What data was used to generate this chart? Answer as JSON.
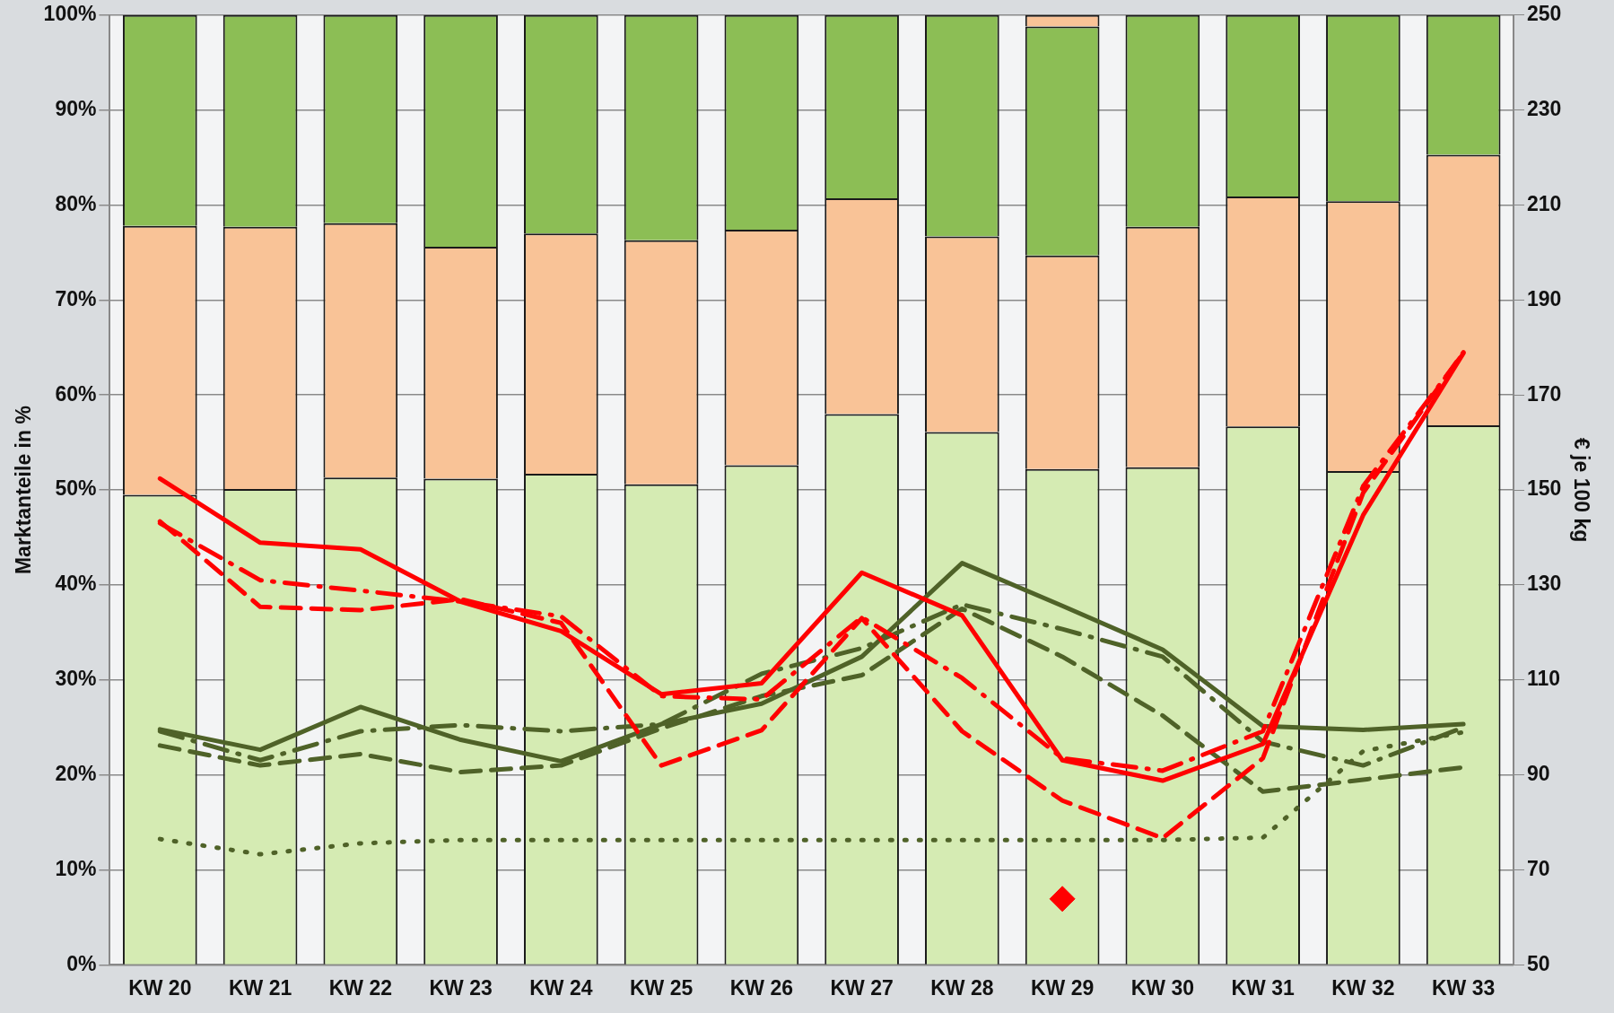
{
  "chart_data": {
    "type": "bar",
    "stacked": true,
    "grid": "y",
    "legend": false,
    "ylabel": "Marktanteile in %",
    "y2label": "€ je 100 kg",
    "categories": [
      "KW 20",
      "KW 21",
      "KW 22",
      "KW 23",
      "KW 24",
      "KW 25",
      "KW 26",
      "KW 27",
      "KW 28",
      "KW 29",
      "KW 30",
      "KW 31",
      "KW 32",
      "KW 33"
    ],
    "ylim": [
      0,
      100
    ],
    "yticks": [
      {
        "value": 0,
        "label": "0%"
      },
      {
        "value": 10,
        "label": "10%"
      },
      {
        "value": 20,
        "label": "20%"
      },
      {
        "value": 30,
        "label": "30%"
      },
      {
        "value": 40,
        "label": "40%"
      },
      {
        "value": 50,
        "label": "50%"
      },
      {
        "value": 60,
        "label": "60%"
      },
      {
        "value": 70,
        "label": "70%"
      },
      {
        "value": 80,
        "label": "80%"
      },
      {
        "value": 90,
        "label": "90%"
      },
      {
        "value": 100,
        "label": "100%"
      }
    ],
    "y2lim": [
      50,
      250
    ],
    "y2ticks": [
      50,
      70,
      90,
      110,
      130,
      150,
      170,
      190,
      210,
      230,
      250
    ],
    "series": [
      {
        "color": "#d5ebb3",
        "values": [
          49.5,
          50.1,
          51.3,
          51.2,
          51.7,
          50.6,
          52.6,
          58.0,
          56.1,
          52.2,
          52.4,
          56.7,
          52.0,
          56.8
        ]
      },
      {
        "color": "#f9c397",
        "values": [
          28.3,
          27.6,
          26.8,
          24.4,
          25.3,
          25.7,
          24.8,
          22.7,
          20.6,
          22.5,
          25.3,
          24.2,
          28.4,
          28.5
        ]
      },
      {
        "color": "#8cbe55",
        "values": [
          22.2,
          22.3,
          21.9,
          24.4,
          23.0,
          23.7,
          22.6,
          19.3,
          23.3,
          24.1,
          22.3,
          19.1,
          19.6,
          14.7
        ]
      },
      {
        "color": "#f9c397",
        "values": [
          null,
          null,
          null,
          null,
          null,
          null,
          null,
          null,
          null,
          1.2,
          null,
          null,
          null,
          null
        ]
      },
      {
        "type": "line",
        "axis": "y2",
        "line_style": "solid",
        "color": "#ff0000",
        "values": [
          152.4,
          138.9,
          137.5,
          126.5,
          120.3,
          107.0,
          109.3,
          132.6,
          123.6,
          93.1,
          88.8,
          96.5,
          144.7,
          178.8
        ]
      },
      {
        "type": "line",
        "axis": "y2",
        "line_style": "dashed",
        "color": "#ff0000",
        "values": [
          143.4,
          125.4,
          124.7,
          127.0,
          122.0,
          92.0,
          99.4,
          123.0,
          99.2,
          84.6,
          76.7,
          93.5,
          149.4,
          179.0
        ]
      },
      {
        "type": "line",
        "axis": "y2",
        "line_style": "dashdot",
        "color": "#ff0000",
        "values": [
          143.0,
          131.0,
          128.8,
          126.5,
          123.4,
          106.6,
          105.9,
          123.2,
          110.4,
          93.5,
          90.9,
          99.2,
          150.8,
          178.8
        ]
      },
      {
        "type": "line",
        "axis": "y2",
        "line_style": "solid",
        "color": "#4f6228",
        "values": [
          99.6,
          95.3,
          104.3,
          97.4,
          92.9,
          100.7,
          105.0,
          114.9,
          134.6,
          125.6,
          116.4,
          100.3,
          99.5,
          100.7
        ]
      },
      {
        "type": "line",
        "axis": "y2",
        "line_style": "dashed",
        "color": "#4f6228",
        "values": [
          96.2,
          92.0,
          94.4,
          90.6,
          92.0,
          99.8,
          106.6,
          111.0,
          125.0,
          114.9,
          102.5,
          86.5,
          89.0,
          91.6
        ]
      },
      {
        "type": "line",
        "axis": "y2",
        "line_style": "dashdot",
        "color": "#4f6228",
        "values": [
          99.2,
          93.1,
          99.2,
          100.5,
          99.2,
          100.7,
          111.3,
          116.7,
          125.9,
          120.7,
          114.9,
          97.0,
          92.0,
          100.0
        ]
      },
      {
        "type": "line",
        "axis": "y2",
        "line_style": "dotted",
        "color": "#4f6228",
        "values": [
          76.5,
          73.3,
          75.6,
          76.3,
          76.3,
          76.3,
          76.3,
          76.3,
          76.3,
          76.3,
          76.3,
          76.8,
          95.0,
          99.0
        ]
      },
      {
        "type": "scatter",
        "axis": "y2",
        "marker": "diamond",
        "color": "#ff0000",
        "x": [
          "KW 29"
        ],
        "values": [
          63.9
        ]
      }
    ]
  }
}
